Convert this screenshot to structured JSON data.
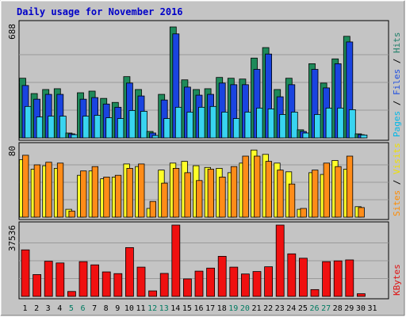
{
  "chart_data": {
    "type": "bar",
    "title": "Daily usage for November 2016",
    "days": [
      "1",
      "2",
      "3",
      "4",
      "5",
      "6",
      "7",
      "8",
      "9",
      "10",
      "11",
      "12",
      "13",
      "14",
      "15",
      "16",
      "17",
      "18",
      "19",
      "20",
      "21",
      "22",
      "23",
      "24",
      "25",
      "26",
      "27",
      "28",
      "29",
      "30",
      "31"
    ],
    "weekend_days": [
      "5",
      "6",
      "12",
      "13",
      "19",
      "20",
      "26",
      "27"
    ],
    "panels": [
      {
        "id": "top",
        "max_label": "688",
        "ylim": [
          0,
          688
        ],
        "right_labels": [
          {
            "text": "Pages",
            "color": "#00b8e8"
          },
          {
            "text": "Files",
            "color": "#2050e0"
          },
          {
            "text": "Hits",
            "color": "#20806a"
          }
        ],
        "series": [
          {
            "name": "Hits",
            "color": "#1e8a5a",
            "values": [
              370,
              275,
              300,
              305,
              30,
              280,
              290,
              245,
              220,
              380,
              300,
              40,
              270,
              688,
              360,
              300,
              305,
              375,
              370,
              365,
              495,
              560,
              300,
              370,
              50,
              460,
              340,
              490,
              630,
              25,
              0
            ]
          },
          {
            "name": "Files",
            "color": "#1a44e0",
            "values": [
              325,
              240,
              270,
              270,
              25,
              240,
              250,
              210,
              190,
              340,
              260,
              30,
              235,
              645,
              315,
              265,
              270,
              340,
              330,
              330,
              425,
              520,
              255,
              330,
              40,
              425,
              310,
              460,
              595,
              20,
              0
            ]
          },
          {
            "name": "Pages",
            "color": "#38d4f0",
            "values": [
              195,
              130,
              135,
              135,
              20,
              135,
              140,
              125,
              120,
              170,
              165,
              15,
              120,
              190,
              160,
              190,
              195,
              160,
              120,
              160,
              185,
              180,
              145,
              160,
              30,
              145,
              185,
              185,
              175,
              18,
              0
            ]
          }
        ]
      },
      {
        "id": "mid",
        "max_label": "80",
        "ylim": [
          0,
          80
        ],
        "right_labels": [
          {
            "text": "Sites",
            "color": "#ff8c00"
          },
          {
            "text": "Visits",
            "color": "#f0e000"
          }
        ],
        "series": [
          {
            "name": "Visits",
            "color": "#ffff28",
            "values": [
              66,
              55,
              59,
              56,
              9,
              48,
              53,
              44,
              46,
              61,
              58,
              10,
              54,
              62,
              64,
              59,
              57,
              56,
              51,
              62,
              77,
              72,
              62,
              52,
              9,
              51,
              49,
              65,
              55,
              12,
              0
            ]
          },
          {
            "name": "Sites",
            "color": "#ff8c18",
            "values": [
              71,
              60,
              63,
              62,
              7,
              53,
              58,
              46,
              48,
              56,
              61,
              18,
              39,
              56,
              51,
              42,
              55,
              46,
              58,
              70,
              70,
              64,
              54,
              38,
              10,
              54,
              62,
              58,
              70,
              11,
              0
            ]
          }
        ]
      },
      {
        "id": "bot",
        "max_label": "37536",
        "ylim": [
          0,
          37536
        ],
        "right_labels": [
          {
            "text": "KBytes",
            "color": "#e01010"
          }
        ],
        "series": [
          {
            "name": "KBytes",
            "color": "#f01010",
            "values": [
              24500,
              11500,
              18500,
              17600,
              2600,
              18300,
              16600,
              12900,
              12000,
              25700,
              15400,
              2900,
              12100,
              37536,
              9200,
              13300,
              14900,
              21100,
              15400,
              11800,
              13100,
              15600,
              37536,
              22400,
              20100,
              3600,
              18300,
              18700,
              19200,
              1400,
              0
            ]
          }
        ]
      }
    ]
  }
}
